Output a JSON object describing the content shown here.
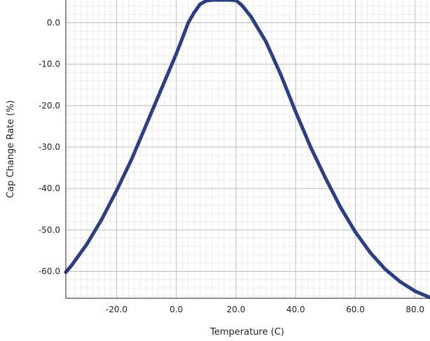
{
  "chart_data": {
    "type": "line",
    "title": "",
    "xlabel": "Temperature (C)",
    "ylabel": "Cap Change Rate (%)",
    "xlim": [
      -37,
      85
    ],
    "ylim": [
      -66.5,
      5.5
    ],
    "xticks": [
      -20,
      0,
      20,
      40,
      60,
      80
    ],
    "xtick_labels": [
      "-20.0",
      "0.0",
      "20.0",
      "40.0",
      "60.0",
      "80.0"
    ],
    "yticks": [
      0,
      -10,
      -20,
      -30,
      -40,
      -50,
      -60
    ],
    "ytick_labels": [
      "0.0",
      "-10.0",
      "-20.0",
      "-30.0",
      "-40.0",
      "-50.0",
      "-60.0"
    ],
    "grid": true,
    "minor_grid": true,
    "series": [
      {
        "color": "#2b3f87",
        "x": [
          -37,
          -35,
          -30,
          -25,
          -20,
          -15,
          -10,
          -5,
          0,
          2,
          4,
          6,
          8,
          10,
          12,
          14,
          16,
          18,
          20,
          22,
          25,
          30,
          35,
          40,
          45,
          50,
          55,
          60,
          65,
          70,
          75,
          80,
          85
        ],
        "y": [
          -60.2,
          -58.5,
          -53.5,
          -47.5,
          -40.5,
          -33.0,
          -24.5,
          -16.0,
          -7.5,
          -3.8,
          0.0,
          2.5,
          4.5,
          5.3,
          5.5,
          5.5,
          5.5,
          5.5,
          5.4,
          4.2,
          1.5,
          -4.5,
          -12.5,
          -21.5,
          -30.0,
          -37.5,
          -44.5,
          -50.5,
          -55.5,
          -59.5,
          -62.5,
          -64.8,
          -66.3
        ]
      }
    ]
  }
}
